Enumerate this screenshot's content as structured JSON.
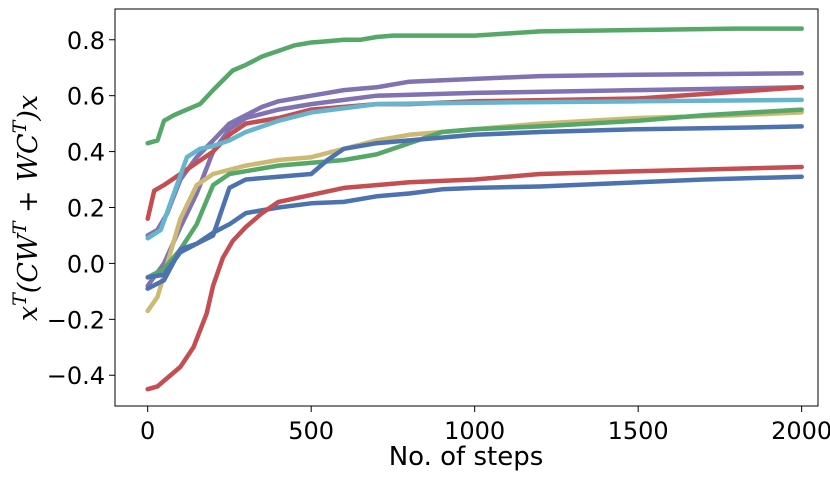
{
  "chart_data": {
    "type": "line",
    "title": "",
    "xlabel": "No. of steps",
    "ylabel": "x^T(CW^T+WC^T)x",
    "xlim": [
      -100,
      2050
    ],
    "ylim": [
      -0.51,
      0.91
    ],
    "xticks": [
      0,
      500,
      1000,
      1500,
      2000
    ],
    "yticks": [
      -0.4,
      -0.2,
      0.0,
      0.2,
      0.4,
      0.6,
      0.8
    ],
    "xtick_labels": [
      "0",
      "500",
      "1000",
      "1500",
      "2000"
    ],
    "ytick_labels": [
      "−0.4",
      "−0.2",
      "0.0",
      "0.2",
      "0.4",
      "0.6",
      "0.8"
    ],
    "grid": false,
    "legend": "none",
    "series": [
      {
        "color": "#55a868",
        "x": [
          0,
          30,
          50,
          80,
          120,
          160,
          200,
          260,
          300,
          350,
          400,
          450,
          500,
          550,
          600,
          650,
          700,
          750,
          1000,
          1200,
          1500,
          1800,
          2000
        ],
        "y": [
          0.43,
          0.44,
          0.51,
          0.53,
          0.55,
          0.57,
          0.62,
          0.69,
          0.71,
          0.74,
          0.76,
          0.78,
          0.79,
          0.795,
          0.8,
          0.8,
          0.81,
          0.815,
          0.815,
          0.83,
          0.835,
          0.84,
          0.84
        ]
      },
      {
        "color": "#8172b2",
        "x": [
          0,
          30,
          60,
          100,
          150,
          200,
          250,
          300,
          350,
          400,
          450,
          500,
          600,
          700,
          800,
          1000,
          1200,
          1500,
          2000
        ],
        "y": [
          0.1,
          0.12,
          0.18,
          0.3,
          0.38,
          0.44,
          0.5,
          0.53,
          0.56,
          0.58,
          0.59,
          0.6,
          0.62,
          0.63,
          0.65,
          0.66,
          0.67,
          0.675,
          0.68
        ]
      },
      {
        "color": "#8172b2",
        "x": [
          0,
          50,
          100,
          150,
          200,
          250,
          300,
          400,
          500,
          700,
          1000,
          1500,
          2000
        ],
        "y": [
          -0.08,
          0.0,
          0.13,
          0.25,
          0.4,
          0.48,
          0.52,
          0.55,
          0.57,
          0.6,
          0.61,
          0.62,
          0.63
        ]
      },
      {
        "color": "#c44e52",
        "x": [
          0,
          20,
          50,
          100,
          150,
          200,
          250,
          300,
          400,
          500,
          600,
          700,
          800,
          1000,
          1500,
          2000
        ],
        "y": [
          0.16,
          0.26,
          0.28,
          0.32,
          0.36,
          0.4,
          0.46,
          0.5,
          0.52,
          0.55,
          0.56,
          0.57,
          0.57,
          0.58,
          0.59,
          0.63
        ]
      },
      {
        "color": "#64b5cd",
        "x": [
          0,
          40,
          80,
          120,
          160,
          200,
          250,
          300,
          400,
          500,
          700,
          1000,
          1500,
          2000
        ],
        "y": [
          0.09,
          0.12,
          0.25,
          0.38,
          0.41,
          0.42,
          0.44,
          0.47,
          0.51,
          0.54,
          0.57,
          0.575,
          0.58,
          0.585
        ]
      },
      {
        "color": "#ccb974",
        "x": [
          0,
          30,
          60,
          100,
          150,
          200,
          300,
          400,
          500,
          600,
          700,
          800,
          1000,
          1200,
          1500,
          1800,
          2000
        ],
        "y": [
          -0.17,
          -0.12,
          0.0,
          0.16,
          0.28,
          0.32,
          0.35,
          0.37,
          0.38,
          0.41,
          0.44,
          0.46,
          0.48,
          0.5,
          0.52,
          0.53,
          0.54
        ]
      },
      {
        "color": "#55a868",
        "x": [
          0,
          50,
          100,
          150,
          200,
          250,
          300,
          400,
          600,
          700,
          800,
          900,
          1000,
          1200,
          1500,
          1700,
          2000
        ],
        "y": [
          -0.05,
          -0.02,
          0.05,
          0.14,
          0.28,
          0.32,
          0.33,
          0.35,
          0.37,
          0.39,
          0.43,
          0.47,
          0.48,
          0.49,
          0.51,
          0.53,
          0.55
        ]
      },
      {
        "color": "#4c72b0",
        "x": [
          0,
          50,
          100,
          150,
          200,
          250,
          300,
          400,
          500,
          550,
          600,
          700,
          800,
          1000,
          1200,
          1500,
          1800,
          2000
        ],
        "y": [
          -0.09,
          -0.06,
          0.05,
          0.07,
          0.1,
          0.27,
          0.3,
          0.31,
          0.32,
          0.37,
          0.41,
          0.43,
          0.44,
          0.46,
          0.47,
          0.48,
          0.485,
          0.49
        ]
      },
      {
        "color": "#4c72b0",
        "x": [
          0,
          50,
          100,
          150,
          200,
          250,
          300,
          400,
          500,
          600,
          700,
          800,
          900,
          1000,
          1200,
          1500,
          1700,
          2000
        ],
        "y": [
          -0.05,
          -0.04,
          0.04,
          0.07,
          0.11,
          0.14,
          0.18,
          0.2,
          0.215,
          0.22,
          0.24,
          0.25,
          0.265,
          0.27,
          0.275,
          0.29,
          0.3,
          0.31
        ]
      },
      {
        "color": "#c44e52",
        "x": [
          0,
          30,
          60,
          100,
          140,
          180,
          200,
          230,
          260,
          300,
          350,
          400,
          500,
          600,
          700,
          800,
          1000,
          1200,
          1500,
          2000
        ],
        "y": [
          -0.45,
          -0.44,
          -0.41,
          -0.37,
          -0.3,
          -0.18,
          -0.08,
          0.02,
          0.08,
          0.13,
          0.18,
          0.22,
          0.245,
          0.27,
          0.28,
          0.29,
          0.3,
          0.32,
          0.33,
          0.345
        ]
      }
    ]
  }
}
